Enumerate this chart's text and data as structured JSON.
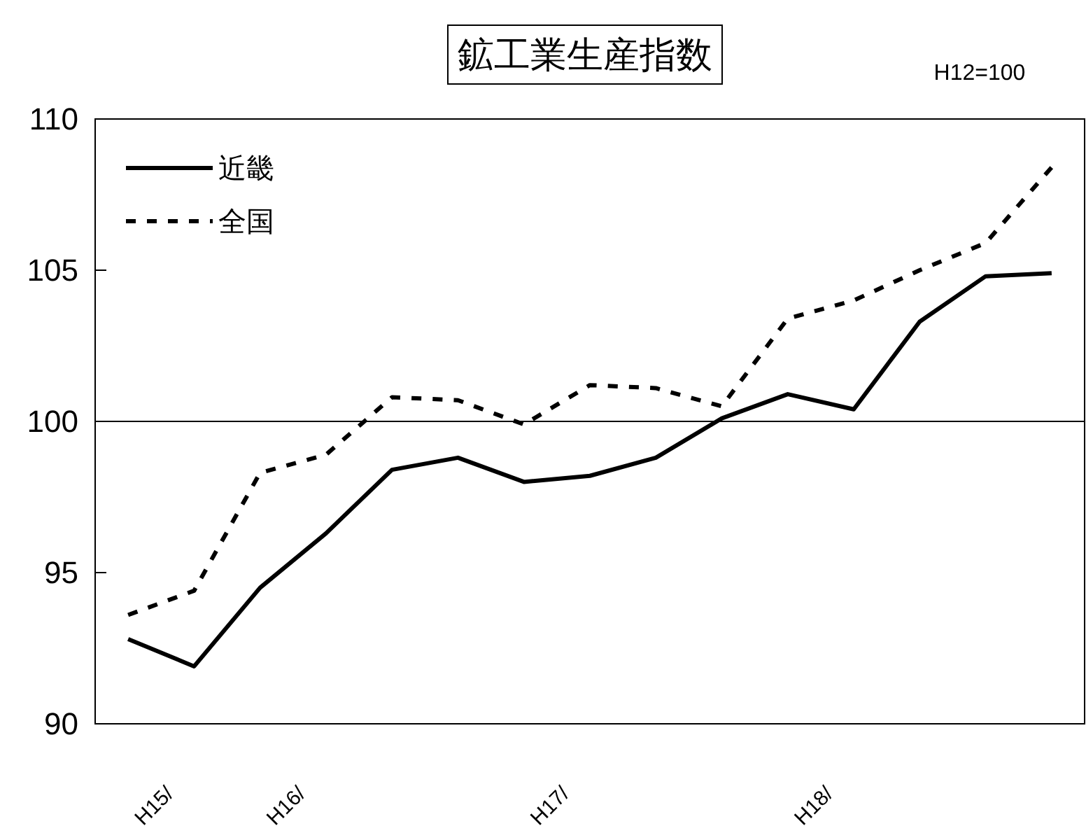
{
  "chart_data": {
    "type": "line",
    "title": "鉱工業生産指数",
    "annotations": [
      "H12=100"
    ],
    "categories": [
      "H15/",
      null,
      "H16/",
      null,
      null,
      null,
      "H17/",
      null,
      null,
      null,
      "H18/",
      null,
      null,
      null,
      null
    ],
    "series": [
      {
        "name": "近畿",
        "color": "#000000",
        "line_style": "solid",
        "values": [
          92.8,
          91.9,
          94.5,
          96.3,
          98.4,
          98.8,
          98.0,
          98.2,
          98.8,
          100.1,
          100.9,
          100.4,
          103.3,
          104.8,
          104.9
        ]
      },
      {
        "name": "全国",
        "color": "#000000",
        "line_style": "dashed",
        "values": [
          93.6,
          94.4,
          98.3,
          98.9,
          100.8,
          100.7,
          99.9,
          101.2,
          101.1,
          100.5,
          103.4,
          104.0,
          105.0,
          105.9,
          108.4
        ]
      }
    ],
    "ylim": [
      90,
      110
    ],
    "yticks": [
      90,
      95,
      100,
      105,
      110
    ],
    "ref_lines": [
      {
        "axis": "y",
        "value": 100,
        "color": "#000000"
      }
    ],
    "grid": false,
    "legend": "top left",
    "marker": "none"
  }
}
